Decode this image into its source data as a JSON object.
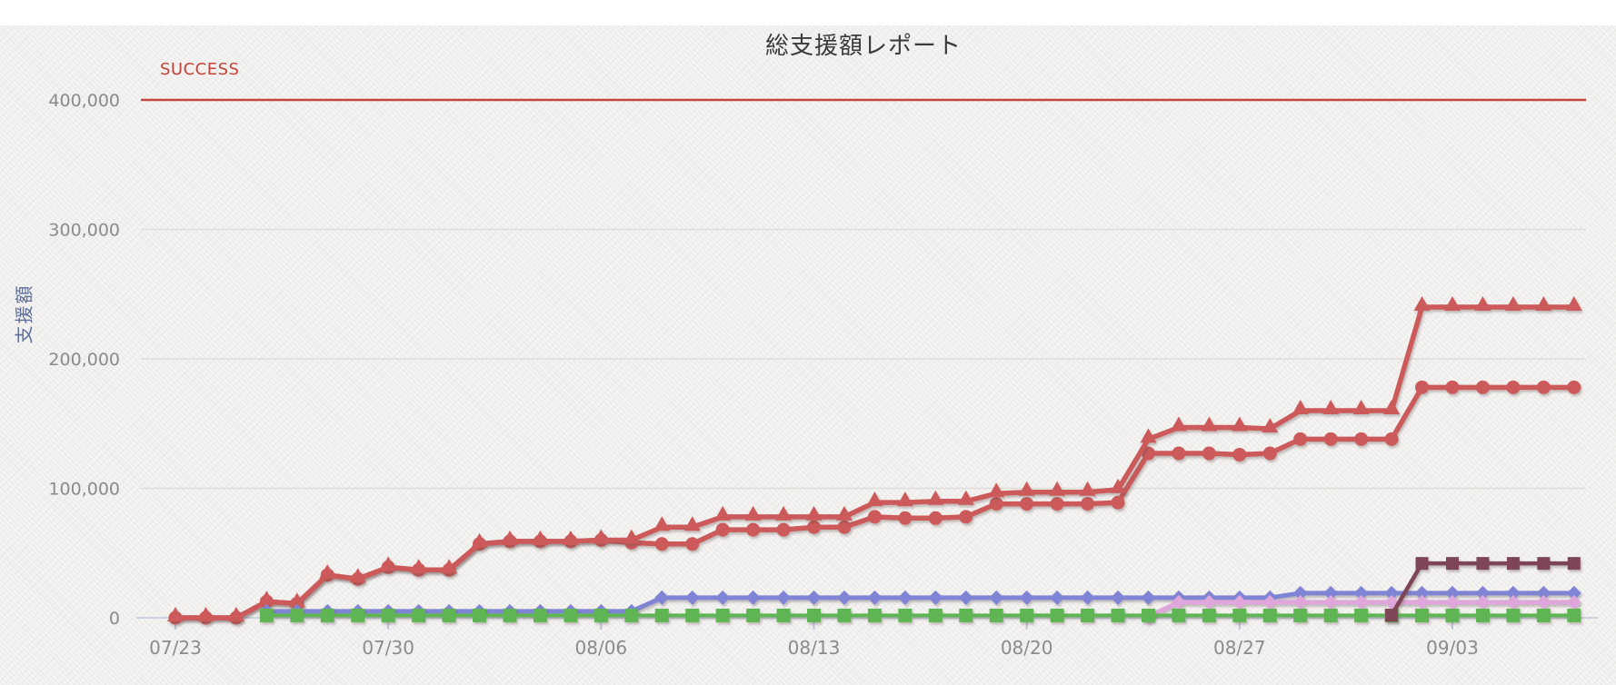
{
  "page": {
    "title": "総支援額レポート",
    "y_axis_title": "支援額"
  },
  "annotation": {
    "label": "SUCCESS",
    "value": 400000,
    "color": "#c64540"
  },
  "colors": {
    "salmon": "#cc5a5a",
    "maroon": "#7d4455",
    "blue": "#7f84d4",
    "pink": "#dfa6db",
    "green": "#5eb552",
    "grid": "#dfddd9",
    "axis": "#c9d3e2",
    "tick_text": "#8b8b8b",
    "background": "#f0efed"
  },
  "chart_data": {
    "type": "line",
    "title": "総支援額レポート",
    "xlabel": "",
    "ylabel": "支援額",
    "ylim": [
      0,
      420000
    ],
    "grid": "horizontal",
    "legend_position": "none",
    "y_ticks": [
      0,
      100000,
      200000,
      300000,
      400000
    ],
    "y_tick_labels": [
      "0",
      "100,000",
      "200,000",
      "300,000",
      "400,000"
    ],
    "x_tick_indices": [
      0,
      7,
      14,
      21,
      28,
      35,
      42
    ],
    "x_tick_labels": [
      "07/23",
      "07/30",
      "08/06",
      "08/13",
      "08/20",
      "08/27",
      "09/03"
    ],
    "annotation": {
      "label": "SUCCESS",
      "y": 400000
    },
    "x": [
      "07/23",
      "07/24",
      "07/25",
      "07/26",
      "07/27",
      "07/28",
      "07/29",
      "07/30",
      "07/31",
      "08/01",
      "08/02",
      "08/03",
      "08/04",
      "08/05",
      "08/06",
      "08/07",
      "08/08",
      "08/09",
      "08/10",
      "08/11",
      "08/12",
      "08/13",
      "08/14",
      "08/15",
      "08/16",
      "08/17",
      "08/18",
      "08/19",
      "08/20",
      "08/21",
      "08/22",
      "08/23",
      "08/24",
      "08/25",
      "08/26",
      "08/27",
      "08/28",
      "08/29",
      "08/30",
      "08/31",
      "09/01",
      "09/02",
      "09/03",
      "09/04",
      "09/05",
      "09/06",
      "09/07"
    ],
    "series": [
      {
        "name": "series-salmon-triangle",
        "marker": "triangle-up",
        "color": "#cc5a5a",
        "values": [
          0,
          0,
          0,
          12500,
          11000,
          33000,
          30000,
          39000,
          37000,
          37000,
          57000,
          59000,
          59000,
          59000,
          60000,
          60000,
          70000,
          70000,
          78000,
          78000,
          78000,
          78000,
          78000,
          89000,
          89000,
          90000,
          90000,
          96000,
          97000,
          97000,
          97000,
          99000,
          138000,
          147000,
          147000,
          147000,
          146000,
          160000,
          160000,
          160000,
          160000,
          240000,
          240000,
          240000,
          240000,
          240000,
          240000
        ]
      },
      {
        "name": "series-salmon-circle",
        "marker": "circle",
        "color": "#cc5a5a",
        "values": [
          0,
          0,
          0,
          12500,
          11000,
          33000,
          30000,
          39000,
          37000,
          37000,
          57000,
          59000,
          59000,
          59000,
          60000,
          58000,
          57000,
          57000,
          68000,
          68000,
          68000,
          70000,
          70000,
          78000,
          77000,
          77000,
          78000,
          88000,
          88000,
          88000,
          88000,
          89000,
          127000,
          127000,
          127000,
          126000,
          127000,
          138000,
          138000,
          138000,
          138000,
          178000,
          178000,
          178000,
          178000,
          178000,
          178000
        ]
      },
      {
        "name": "series-maroon-square",
        "marker": "square",
        "color": "#7d4455",
        "values": [
          null,
          null,
          null,
          null,
          null,
          null,
          null,
          null,
          null,
          null,
          null,
          null,
          null,
          null,
          null,
          null,
          null,
          null,
          null,
          null,
          null,
          null,
          null,
          null,
          null,
          null,
          null,
          null,
          null,
          null,
          null,
          null,
          null,
          null,
          null,
          null,
          null,
          null,
          null,
          null,
          2000,
          42000,
          42000,
          42000,
          42000,
          42000,
          42000
        ]
      },
      {
        "name": "series-blue-diamond",
        "marker": "diamond",
        "color": "#7f84d4",
        "values": [
          null,
          null,
          null,
          5000,
          5000,
          5000,
          5000,
          5000,
          5000,
          5000,
          5000,
          5000,
          5000,
          5000,
          5000,
          5000,
          15500,
          15500,
          15500,
          15500,
          15500,
          15500,
          15500,
          15500,
          15500,
          15500,
          15500,
          15500,
          15500,
          15500,
          15500,
          15500,
          15500,
          15500,
          15500,
          15500,
          15500,
          19000,
          19000,
          19000,
          19000,
          19000,
          19000,
          19000,
          19000,
          19000,
          19000
        ]
      },
      {
        "name": "series-pink-diamond",
        "marker": "diamond",
        "color": "#dfa6db",
        "values": [
          null,
          null,
          null,
          null,
          null,
          null,
          null,
          null,
          null,
          null,
          null,
          null,
          null,
          null,
          null,
          null,
          null,
          null,
          null,
          null,
          null,
          null,
          null,
          null,
          null,
          null,
          null,
          null,
          null,
          null,
          null,
          null,
          1000,
          12000,
          12000,
          12000,
          12000,
          12000,
          12000,
          12000,
          12000,
          12000,
          12000,
          12000,
          12000,
          12000,
          12000
        ]
      },
      {
        "name": "series-green-square",
        "marker": "square",
        "color": "#5eb552",
        "values": [
          null,
          null,
          null,
          1800,
          1800,
          1800,
          1800,
          1800,
          1800,
          1800,
          1800,
          1800,
          1800,
          1800,
          1800,
          1800,
          1800,
          1800,
          1800,
          1800,
          1800,
          1800,
          1800,
          1800,
          1800,
          1800,
          1800,
          1800,
          1800,
          1800,
          1800,
          1800,
          1800,
          1800,
          1800,
          1800,
          1800,
          1800,
          1800,
          1800,
          1800,
          1800,
          1800,
          1800,
          1800,
          1800,
          1800
        ]
      }
    ]
  }
}
